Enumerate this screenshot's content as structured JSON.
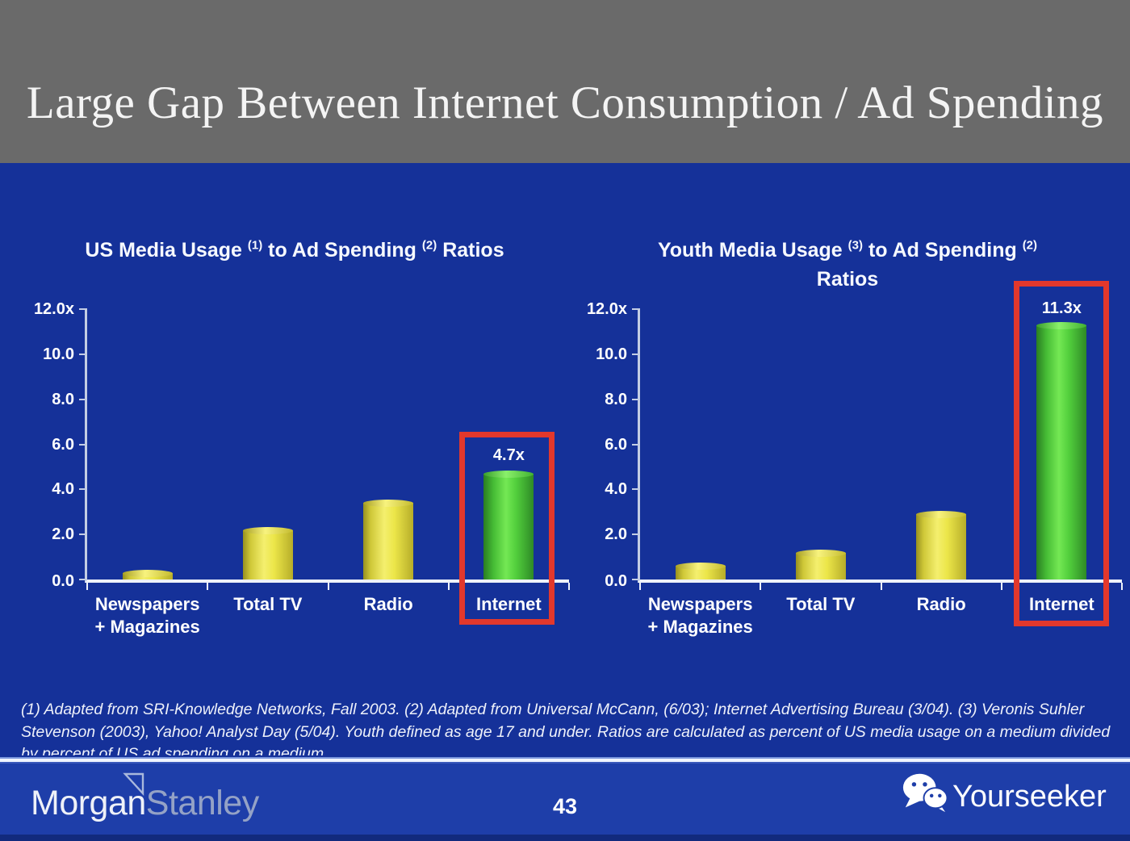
{
  "slide": {
    "title": "Large Gap Between Internet Consumption / Ad Spending",
    "footnote": "(1) Adapted from SRI-Knowledge Networks, Fall 2003.  (2) Adapted from Universal McCann, (6/03); Internet Advertising Bureau (3/04). (3) Veronis Suhler Stevenson (2003), Yahoo! Analyst Day (5/04).  Youth defined as age 17 and under.  Ratios are calculated as percent of US media usage on a medium divided by percent of US ad spending on a medium."
  },
  "footer": {
    "logo_part1": "Morgan",
    "logo_part2": "Stanley",
    "page_number": "43",
    "brand": "Yourseeker"
  },
  "icons": {
    "brand_icon": "wechat-icon",
    "logo_icon": "morgan-stanley-triangle-icon"
  },
  "colors": {
    "slide_bg": "#153199",
    "header_bg": "#6a6a6a",
    "footer_bg": "#1e3ea9",
    "bottom_strip": "#122a7d",
    "highlight_red": "#e2382c",
    "bar_yellow": "#f4ef6e",
    "bar_green": "#74e854",
    "axis_line": "#eef2fa"
  },
  "chart_data": [
    {
      "type": "bar",
      "title": "US Media Usage (1) to Ad Spending (2) Ratios",
      "title_parts": {
        "t1": "US Media Usage",
        "s1": "(1)",
        "t2": "to Ad Spending",
        "s2": "(2)",
        "t3": "Ratios"
      },
      "ylim": [
        0,
        12
      ],
      "grid": "off",
      "legend": "none",
      "y_ticks": [
        "12.0x",
        "10.0",
        "8.0",
        "6.0",
        "4.0",
        "2.0",
        "0.0"
      ],
      "categories": [
        {
          "line1": "Newspapers",
          "line2": "+ Magazines"
        },
        {
          "line1": "Total TV"
        },
        {
          "line1": "Radio"
        },
        {
          "line1": "Internet"
        }
      ],
      "values": [
        0.3,
        2.2,
        3.4,
        4.7
      ],
      "bar_colors": [
        "yellow",
        "yellow",
        "yellow",
        "green"
      ],
      "highlight": {
        "category": "Internet",
        "value_label": "4.7x"
      }
    },
    {
      "type": "bar",
      "title": "Youth Media Usage (3) to Ad Spending (2) Ratios",
      "title_parts": {
        "t1": "Youth Media Usage",
        "s1": "(3)",
        "t2": "to Ad Spending",
        "s2": "(2)",
        "t3": "Ratios"
      },
      "ylim": [
        0,
        12
      ],
      "grid": "off",
      "legend": "none",
      "y_ticks": [
        "12.0x",
        "10.0",
        "8.0",
        "6.0",
        "4.0",
        "2.0",
        "0.0"
      ],
      "categories": [
        {
          "line1": "Newspapers",
          "line2": "+ Magazines"
        },
        {
          "line1": "Total TV"
        },
        {
          "line1": "Radio"
        },
        {
          "line1": "Internet"
        }
      ],
      "values": [
        0.6,
        1.2,
        2.9,
        11.3
      ],
      "bar_colors": [
        "yellow",
        "yellow",
        "yellow",
        "green"
      ],
      "highlight": {
        "category": "Internet",
        "value_label": "11.3x"
      }
    }
  ]
}
